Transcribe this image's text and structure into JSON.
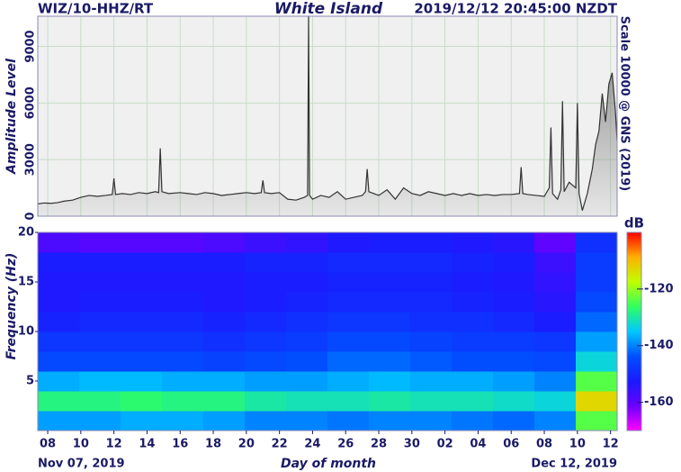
{
  "chart_data": [
    {
      "type": "area",
      "station": "WIZ/10-HHZ/RT",
      "title": "White Island",
      "timestamp": "2019/12/12 20:45:00 NZDT",
      "y_label": "Amplitude Level",
      "right_label": "Scale 10000 @ GNS (2019)",
      "color": "#333333",
      "fill": "#808080",
      "grid": true,
      "xlim": [
        0.4,
        35.4
      ],
      "xticks": [
        1,
        3,
        5,
        7,
        9,
        11,
        13,
        15,
        17,
        19,
        21,
        23,
        25,
        27,
        29,
        31,
        33,
        35
      ],
      "ylim": [
        0,
        10600
      ],
      "yticks": [
        0,
        3000,
        6000,
        9000
      ],
      "x": [
        0.4,
        0.8,
        1.2,
        1.6,
        2,
        2.5,
        3,
        3.5,
        4,
        4.5,
        4.9,
        5.0,
        5.1,
        5.5,
        6,
        6.5,
        7,
        7.5,
        7.7,
        7.8,
        7.9,
        8.3,
        9,
        9.5,
        10,
        10.5,
        11,
        11.5,
        12,
        12.5,
        13,
        13.5,
        13.9,
        14.0,
        14.1,
        14.5,
        15,
        15.5,
        16,
        16.5,
        16.7,
        16.76,
        16.82,
        17,
        17.5,
        18,
        18.5,
        19,
        19.5,
        20,
        20.2,
        20.3,
        20.4,
        21,
        21.5,
        22,
        22.5,
        23,
        23.5,
        24,
        24.5,
        25,
        25.5,
        26,
        26.5,
        27,
        27.5,
        28,
        28.5,
        29,
        29.5,
        29.6,
        29.7,
        30,
        30.5,
        31,
        31.3,
        31.4,
        31.5,
        31.8,
        32.0,
        32.1,
        32.2,
        32.5,
        32.9,
        33.0,
        33.1,
        33.3,
        33.6,
        33.9,
        34.1,
        34.3,
        34.5,
        34.7,
        34.9,
        35.1,
        35.3,
        35.4
      ],
      "values": [
        650,
        700,
        680,
        720,
        800,
        850,
        1000,
        1100,
        1050,
        1100,
        1150,
        2000,
        1150,
        1200,
        1150,
        1250,
        1200,
        1300,
        1250,
        3600,
        1300,
        1200,
        1250,
        1200,
        1150,
        1250,
        1200,
        1100,
        1150,
        1200,
        1250,
        1200,
        1250,
        1900,
        1250,
        1200,
        1250,
        900,
        850,
        1000,
        1100,
        10600,
        1100,
        900,
        1100,
        1000,
        1300,
        900,
        1000,
        1100,
        1300,
        2500,
        1300,
        1100,
        1400,
        900,
        1500,
        1200,
        1100,
        1300,
        1200,
        1100,
        1200,
        1100,
        1200,
        1100,
        1150,
        1100,
        1150,
        1150,
        1200,
        2600,
        1200,
        1150,
        1100,
        1050,
        1500,
        4700,
        1200,
        900,
        1400,
        6100,
        1300,
        1800,
        1500,
        6000,
        1200,
        300,
        1200,
        2500,
        3800,
        4500,
        6500,
        5000,
        7000,
        7600,
        5500,
        4000
      ]
    },
    {
      "type": "heatmap",
      "y_label": "Frequency (Hz)",
      "x_label": "Day of month",
      "start_label": "Nov 07, 2019",
      "end_label": "Dec 12, 2019",
      "colorbar_label": "dB",
      "xlim": [
        0.4,
        35.4
      ],
      "xticks": [
        {
          "value": 1,
          "label": "08"
        },
        {
          "value": 3,
          "label": "10"
        },
        {
          "value": 5,
          "label": "12"
        },
        {
          "value": 7,
          "label": "14"
        },
        {
          "value": 9,
          "label": "16"
        },
        {
          "value": 11,
          "label": "18"
        },
        {
          "value": 13,
          "label": "20"
        },
        {
          "value": 15,
          "label": "22"
        },
        {
          "value": 17,
          "label": "24"
        },
        {
          "value": 19,
          "label": "26"
        },
        {
          "value": 21,
          "label": "28"
        },
        {
          "value": 23,
          "label": "30"
        },
        {
          "value": 25,
          "label": "02"
        },
        {
          "value": 27,
          "label": "04"
        },
        {
          "value": 29,
          "label": "06"
        },
        {
          "value": 31,
          "label": "08"
        },
        {
          "value": 33,
          "label": "10"
        },
        {
          "value": 35,
          "label": "12"
        }
      ],
      "ylim": [
        0,
        20
      ],
      "yticks": [
        5,
        10,
        15,
        20
      ],
      "clim": [
        -170,
        -100
      ],
      "cticks": [
        -120,
        -140,
        -160
      ],
      "colormap": [
        "#ff00ff",
        "#6a00ff",
        "#1a1aff",
        "#0050ff",
        "#00c8ff",
        "#30ff60",
        "#c0ff00",
        "#ffb000",
        "#ff0000"
      ],
      "x_edges": [
        0.4,
        2.9,
        5.4,
        7.9,
        10.4,
        12.9,
        15.4,
        17.9,
        20.4,
        22.9,
        25.4,
        27.9,
        30.4,
        32.9,
        35.4
      ],
      "freq_edges": [
        0,
        2,
        4,
        6,
        8,
        10,
        12,
        14,
        16,
        18,
        20
      ],
      "db": [
        [
          -138,
          -138,
          -137,
          -137,
          -138,
          -140,
          -140,
          -141,
          -140,
          -140,
          -141,
          -142,
          -140,
          -124
        ],
        [
          -128,
          -128,
          -127,
          -128,
          -128,
          -130,
          -131,
          -131,
          -130,
          -131,
          -131,
          -132,
          -133,
          -113
        ],
        [
          -137,
          -136,
          -136,
          -137,
          -137,
          -138,
          -138,
          -137,
          -136,
          -137,
          -137,
          -138,
          -140,
          -124
        ],
        [
          -145,
          -145,
          -145,
          -145,
          -146,
          -145,
          -144,
          -142,
          -142,
          -143,
          -144,
          -144,
          -145,
          -133
        ],
        [
          -148,
          -148,
          -148,
          -148,
          -149,
          -148,
          -147,
          -145,
          -145,
          -146,
          -147,
          -147,
          -148,
          -138
        ],
        [
          -151,
          -150,
          -150,
          -150,
          -151,
          -150,
          -149,
          -148,
          -148,
          -149,
          -149,
          -150,
          -152,
          -142
        ],
        [
          -153,
          -152,
          -152,
          -152,
          -153,
          -152,
          -151,
          -150,
          -150,
          -150,
          -151,
          -152,
          -154,
          -145
        ],
        [
          -153,
          -153,
          -153,
          -153,
          -153,
          -152,
          -152,
          -151,
          -151,
          -151,
          -152,
          -153,
          -155,
          -147
        ],
        [
          -152,
          -152,
          -152,
          -152,
          -152,
          -151,
          -151,
          -150,
          -150,
          -150,
          -151,
          -152,
          -156,
          -147
        ],
        [
          -158,
          -159,
          -159,
          -159,
          -158,
          -156,
          -155,
          -153,
          -152,
          -152,
          -153,
          -154,
          -160,
          -149
        ]
      ]
    }
  ]
}
